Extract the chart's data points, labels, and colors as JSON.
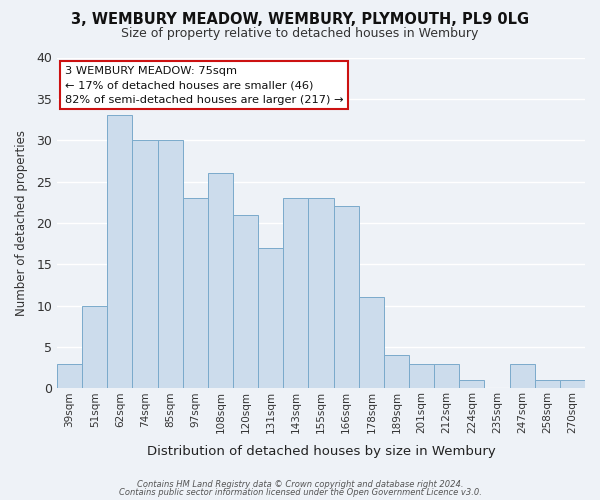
{
  "title": "3, WEMBURY MEADOW, WEMBURY, PLYMOUTH, PL9 0LG",
  "subtitle": "Size of property relative to detached houses in Wembury",
  "xlabel": "Distribution of detached houses by size in Wembury",
  "ylabel": "Number of detached properties",
  "bar_labels": [
    "39sqm",
    "51sqm",
    "62sqm",
    "74sqm",
    "85sqm",
    "97sqm",
    "108sqm",
    "120sqm",
    "131sqm",
    "143sqm",
    "155sqm",
    "166sqm",
    "178sqm",
    "189sqm",
    "201sqm",
    "212sqm",
    "224sqm",
    "235sqm",
    "247sqm",
    "258sqm",
    "270sqm"
  ],
  "bar_values": [
    3,
    10,
    33,
    30,
    30,
    23,
    26,
    21,
    17,
    23,
    23,
    22,
    11,
    4,
    3,
    3,
    1,
    0,
    3,
    1,
    1
  ],
  "bar_color": "#ccdcec",
  "bar_edge_color": "#7aaacb",
  "ylim": [
    0,
    40
  ],
  "yticks": [
    0,
    5,
    10,
    15,
    20,
    25,
    30,
    35,
    40
  ],
  "annotation_title": "3 WEMBURY MEADOW: 75sqm",
  "annotation_line1": "← 17% of detached houses are smaller (46)",
  "annotation_line2": "82% of semi-detached houses are larger (217) →",
  "annotation_box_color": "#ffffff",
  "annotation_box_edge": "#cc1111",
  "footer1": "Contains HM Land Registry data © Crown copyright and database right 2024.",
  "footer2": "Contains public sector information licensed under the Open Government Licence v3.0.",
  "background_color": "#eef2f7",
  "grid_color": "#ffffff",
  "plot_bg_color": "#eef2f7"
}
